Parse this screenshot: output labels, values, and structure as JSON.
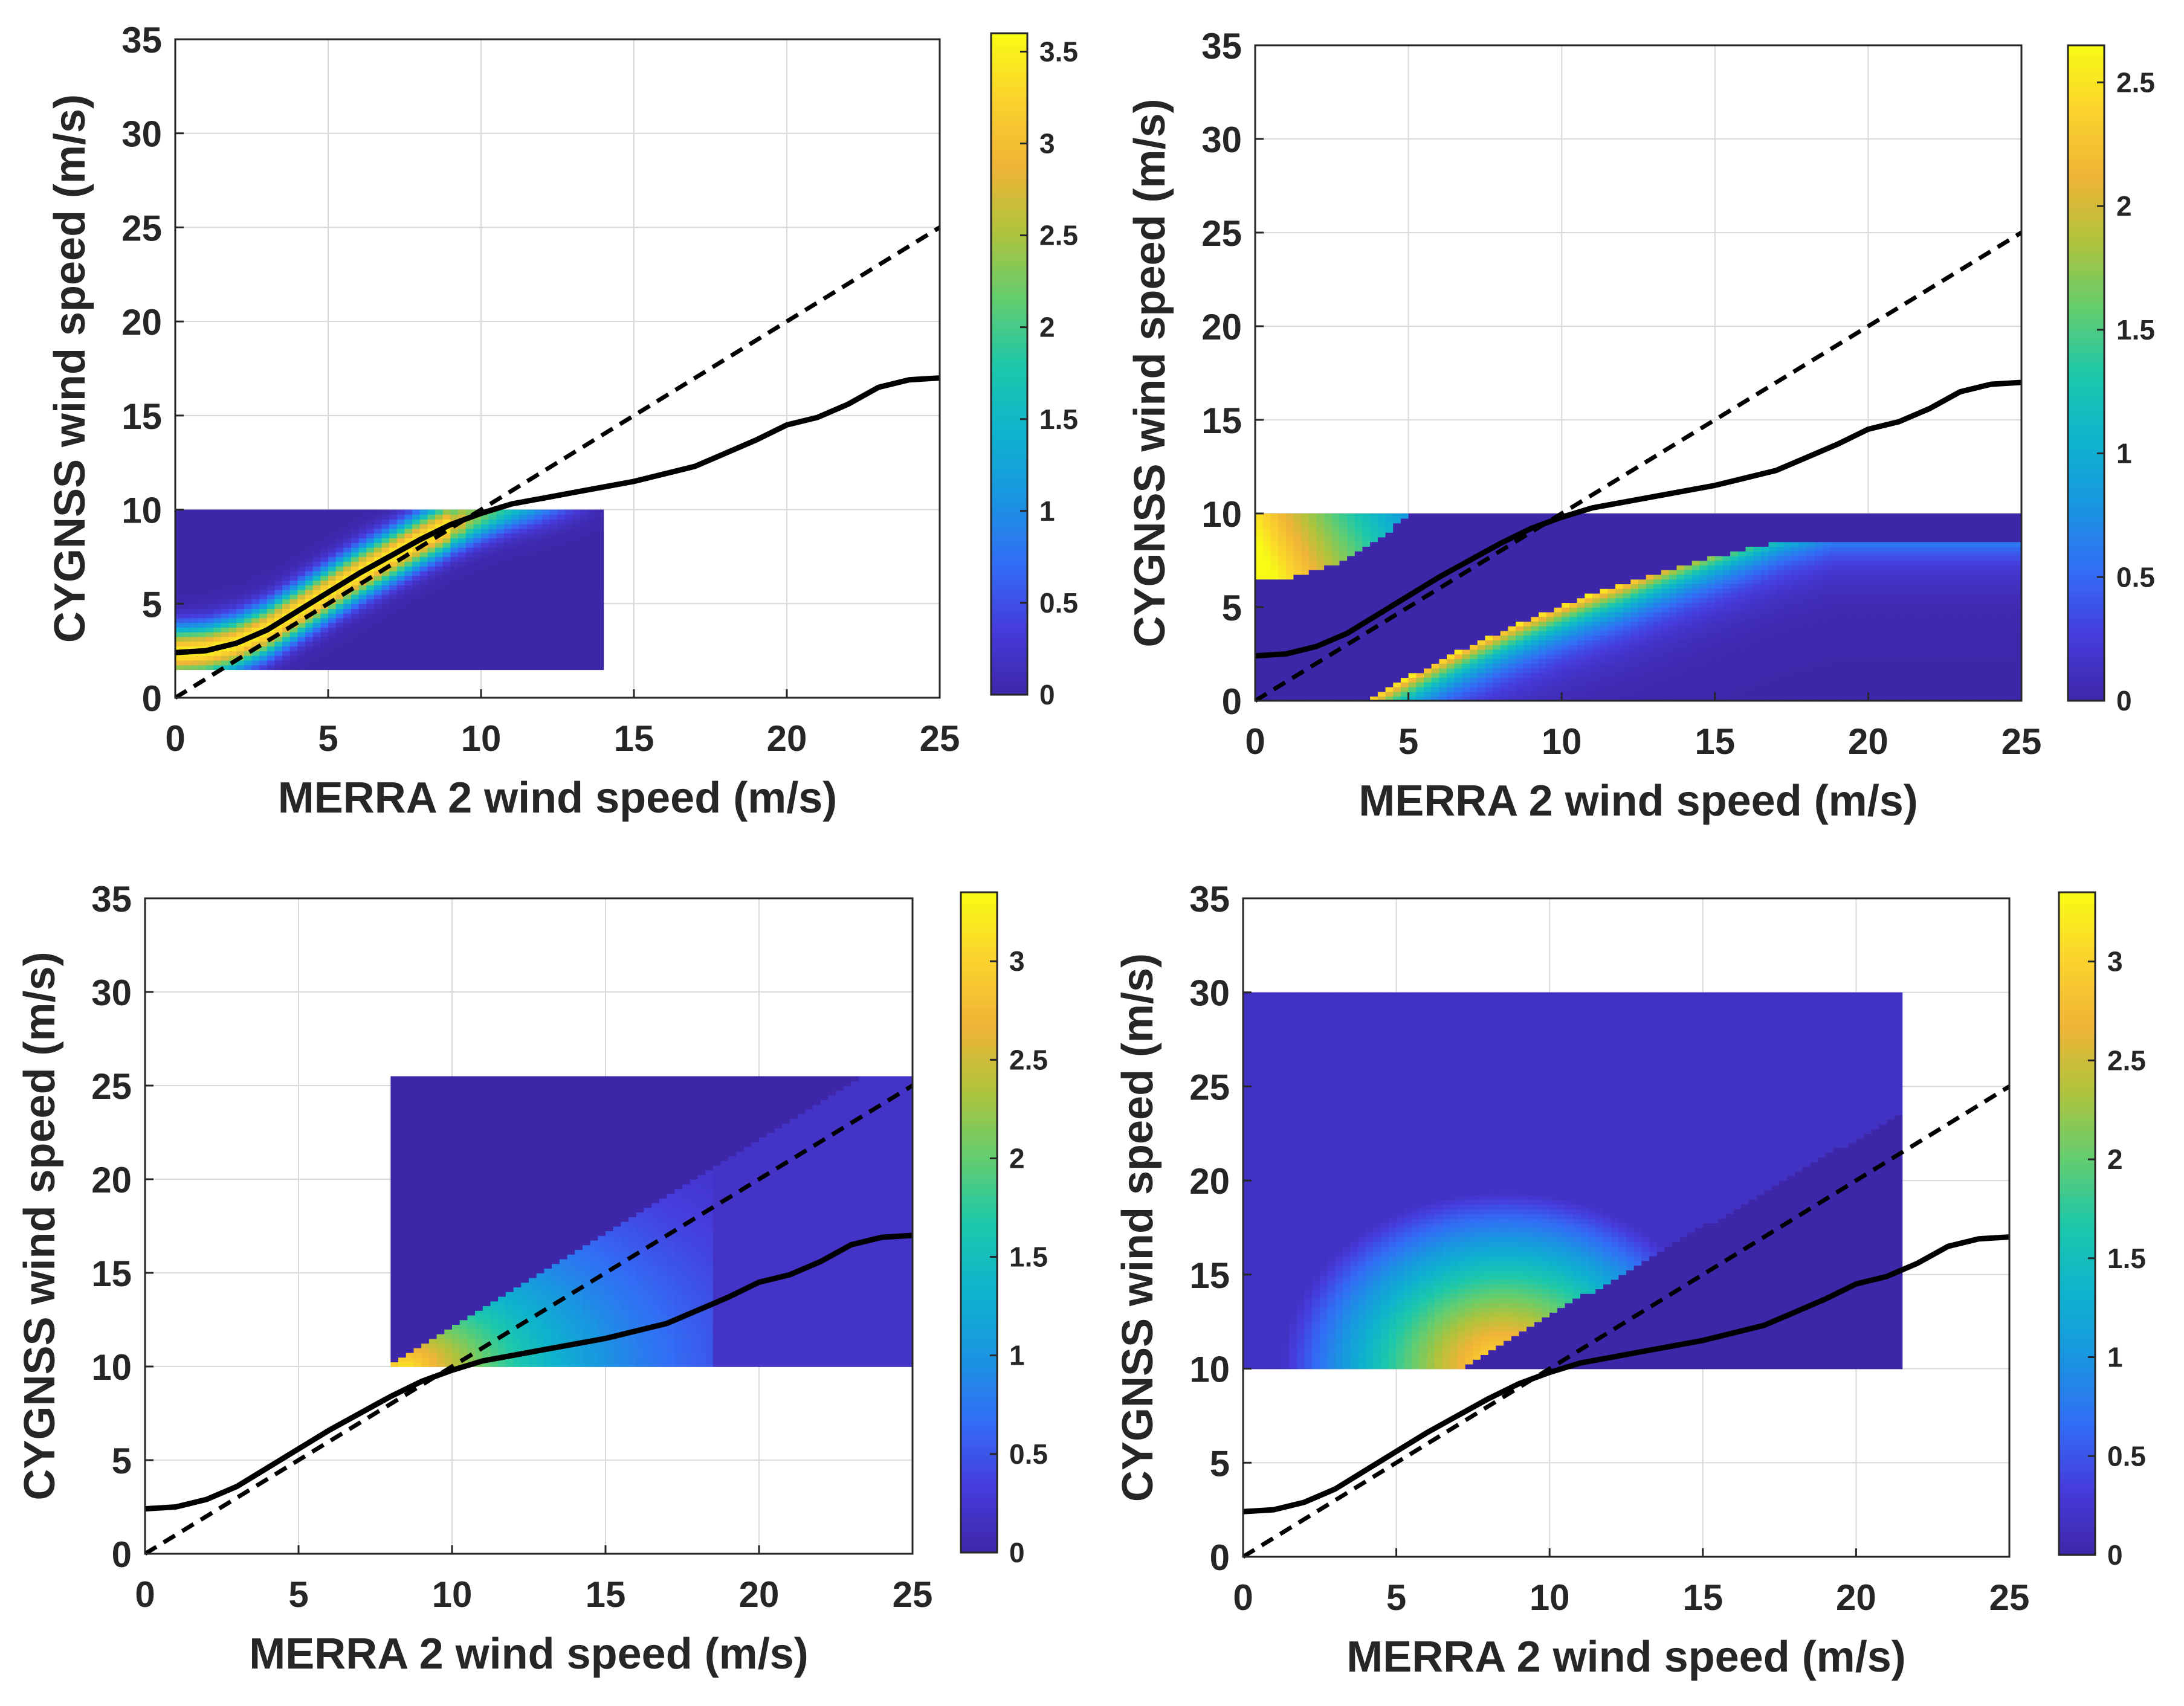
{
  "figure": {
    "description_colors": {
      "axis_color": "#262626",
      "grid_color": "#d9d9d9",
      "curve_color": "#000000",
      "background_fill": "#3e26a8"
    },
    "colormap": "parula"
  },
  "chart_data": [
    {
      "panel": "top-left",
      "type": "heatmap",
      "xlabel": "MERRA 2 wind speed (m/s)",
      "ylabel": "CYGNSS wind speed (m/s)",
      "xlim": [
        0,
        25
      ],
      "ylim": [
        0,
        35
      ],
      "xticks": [
        0,
        5,
        10,
        15,
        20,
        25
      ],
      "yticks": [
        0,
        5,
        10,
        15,
        20,
        25,
        30,
        35
      ],
      "grid": true,
      "colorbar": {
        "min": 0,
        "max": 3.6,
        "ticks": [
          0,
          0.5,
          1,
          1.5,
          2,
          2.5,
          3,
          3.5
        ]
      },
      "heatmap_extent": {
        "x": [
          0,
          14
        ],
        "y": [
          1.5,
          10
        ]
      },
      "density_band": {
        "kind": "ridge",
        "peak": 3.5,
        "width": 0.9,
        "fade_start": 9.5,
        "fade_end": 14
      },
      "series": [
        {
          "name": "mean CYGNSS vs MERRA 2",
          "style": "solid",
          "x": [
            0,
            1,
            2,
            3,
            4,
            5,
            6,
            7,
            8,
            9,
            10,
            11,
            12,
            13,
            14,
            15,
            16,
            17,
            18,
            19,
            20,
            21,
            22,
            23,
            24,
            25
          ],
          "y": [
            2.4,
            2.5,
            2.9,
            3.6,
            4.6,
            5.6,
            6.6,
            7.5,
            8.4,
            9.2,
            9.8,
            10.3,
            10.6,
            10.9,
            11.2,
            11.5,
            11.9,
            12.3,
            13.0,
            13.7,
            14.5,
            14.9,
            15.6,
            16.5,
            16.9,
            17.0
          ]
        },
        {
          "name": "1:1 line",
          "style": "dashed",
          "x": [
            0,
            25
          ],
          "y": [
            0,
            25
          ]
        }
      ]
    },
    {
      "panel": "top-right",
      "type": "heatmap",
      "xlabel": "MERRA 2 wind speed (m/s)",
      "ylabel": "CYGNSS wind speed (m/s)",
      "xlim": [
        0,
        25
      ],
      "ylim": [
        0,
        35
      ],
      "xticks": [
        0,
        5,
        10,
        15,
        20,
        25
      ],
      "yticks": [
        0,
        5,
        10,
        15,
        20,
        25,
        30,
        35
      ],
      "grid": true,
      "colorbar": {
        "min": 0,
        "max": 2.65,
        "ticks": [
          0,
          0.5,
          1,
          1.5,
          2,
          2.5
        ]
      },
      "heatmap_extent": {
        "x": [
          0,
          25
        ],
        "y": [
          0,
          10
        ]
      },
      "density_band": {
        "kind": "split",
        "peak": 2.6
      },
      "series": [
        {
          "name": "mean CYGNSS vs MERRA 2",
          "style": "solid",
          "x": [
            0,
            1,
            2,
            3,
            4,
            5,
            6,
            7,
            8,
            9,
            10,
            11,
            12,
            13,
            14,
            15,
            16,
            17,
            18,
            19,
            20,
            21,
            22,
            23,
            24,
            25
          ],
          "y": [
            2.4,
            2.5,
            2.9,
            3.6,
            4.6,
            5.6,
            6.6,
            7.5,
            8.4,
            9.2,
            9.8,
            10.3,
            10.6,
            10.9,
            11.2,
            11.5,
            11.9,
            12.3,
            13.0,
            13.7,
            14.5,
            14.9,
            15.6,
            16.5,
            16.9,
            17.0
          ]
        },
        {
          "name": "1:1 line",
          "style": "dashed",
          "x": [
            0,
            25
          ],
          "y": [
            0,
            25
          ]
        }
      ]
    },
    {
      "panel": "bottom-left",
      "type": "heatmap",
      "xlabel": "MERRA 2 wind speed (m/s)",
      "ylabel": "CYGNSS wind speed (m/s)",
      "xlim": [
        0,
        25
      ],
      "ylim": [
        0,
        35
      ],
      "xticks": [
        0,
        5,
        10,
        15,
        20,
        25
      ],
      "yticks": [
        0,
        5,
        10,
        15,
        20,
        25,
        30,
        35
      ],
      "grid": true,
      "colorbar": {
        "min": 0,
        "max": 3.35,
        "ticks": [
          0,
          0.5,
          1,
          1.5,
          2,
          2.5,
          3
        ]
      },
      "heatmap_extent": {
        "x": [
          8,
          25
        ],
        "y": [
          10,
          25.5
        ]
      },
      "density_band": {
        "kind": "wedge_up",
        "peak": 3.2,
        "diag_x0": 8,
        "diag_y0": 10,
        "slope": 1
      },
      "series": [
        {
          "name": "mean CYGNSS vs MERRA 2",
          "style": "solid",
          "x": [
            0,
            1,
            2,
            3,
            4,
            5,
            6,
            7,
            8,
            9,
            10,
            11,
            12,
            13,
            14,
            15,
            16,
            17,
            18,
            19,
            20,
            21,
            22,
            23,
            24,
            25
          ],
          "y": [
            2.4,
            2.5,
            2.9,
            3.6,
            4.6,
            5.6,
            6.6,
            7.5,
            8.4,
            9.2,
            9.8,
            10.3,
            10.6,
            10.9,
            11.2,
            11.5,
            11.9,
            12.3,
            13.0,
            13.7,
            14.5,
            14.9,
            15.6,
            16.5,
            16.9,
            17.0
          ]
        },
        {
          "name": "1:1 line",
          "style": "dashed",
          "x": [
            0,
            25
          ],
          "y": [
            0,
            25
          ]
        }
      ]
    },
    {
      "panel": "bottom-right",
      "type": "heatmap",
      "xlabel": "MERRA 2 wind speed (m/s)",
      "ylabel": "CYGNSS wind speed (m/s)",
      "xlim": [
        0,
        25
      ],
      "ylim": [
        0,
        35
      ],
      "xticks": [
        0,
        5,
        10,
        15,
        20,
        25
      ],
      "yticks": [
        0,
        5,
        10,
        15,
        20,
        25,
        30,
        35
      ],
      "grid": true,
      "colorbar": {
        "min": 0,
        "max": 3.35,
        "ticks": [
          0,
          0.5,
          1,
          1.5,
          2,
          2.5,
          3
        ]
      },
      "heatmap_extent": {
        "x": [
          0,
          21.5
        ],
        "y": [
          10,
          30
        ]
      },
      "density_band": {
        "kind": "blob_left",
        "peak": 3.3,
        "center_x": 8.5,
        "center_y": 10,
        "diag_x0": 7,
        "diag_y0": 10,
        "slope": 0.94
      },
      "series": [
        {
          "name": "mean CYGNSS vs MERRA 2",
          "style": "solid",
          "x": [
            0,
            1,
            2,
            3,
            4,
            5,
            6,
            7,
            8,
            9,
            10,
            11,
            12,
            13,
            14,
            15,
            16,
            17,
            18,
            19,
            20,
            21,
            22,
            23,
            24,
            25
          ],
          "y": [
            2.4,
            2.5,
            2.9,
            3.6,
            4.6,
            5.6,
            6.6,
            7.5,
            8.4,
            9.2,
            9.8,
            10.3,
            10.6,
            10.9,
            11.2,
            11.5,
            11.9,
            12.3,
            13.0,
            13.7,
            14.5,
            14.9,
            15.6,
            16.5,
            16.9,
            17.0
          ]
        },
        {
          "name": "1:1 line",
          "style": "dashed",
          "x": [
            0,
            25
          ],
          "y": [
            0,
            25
          ]
        }
      ]
    }
  ]
}
